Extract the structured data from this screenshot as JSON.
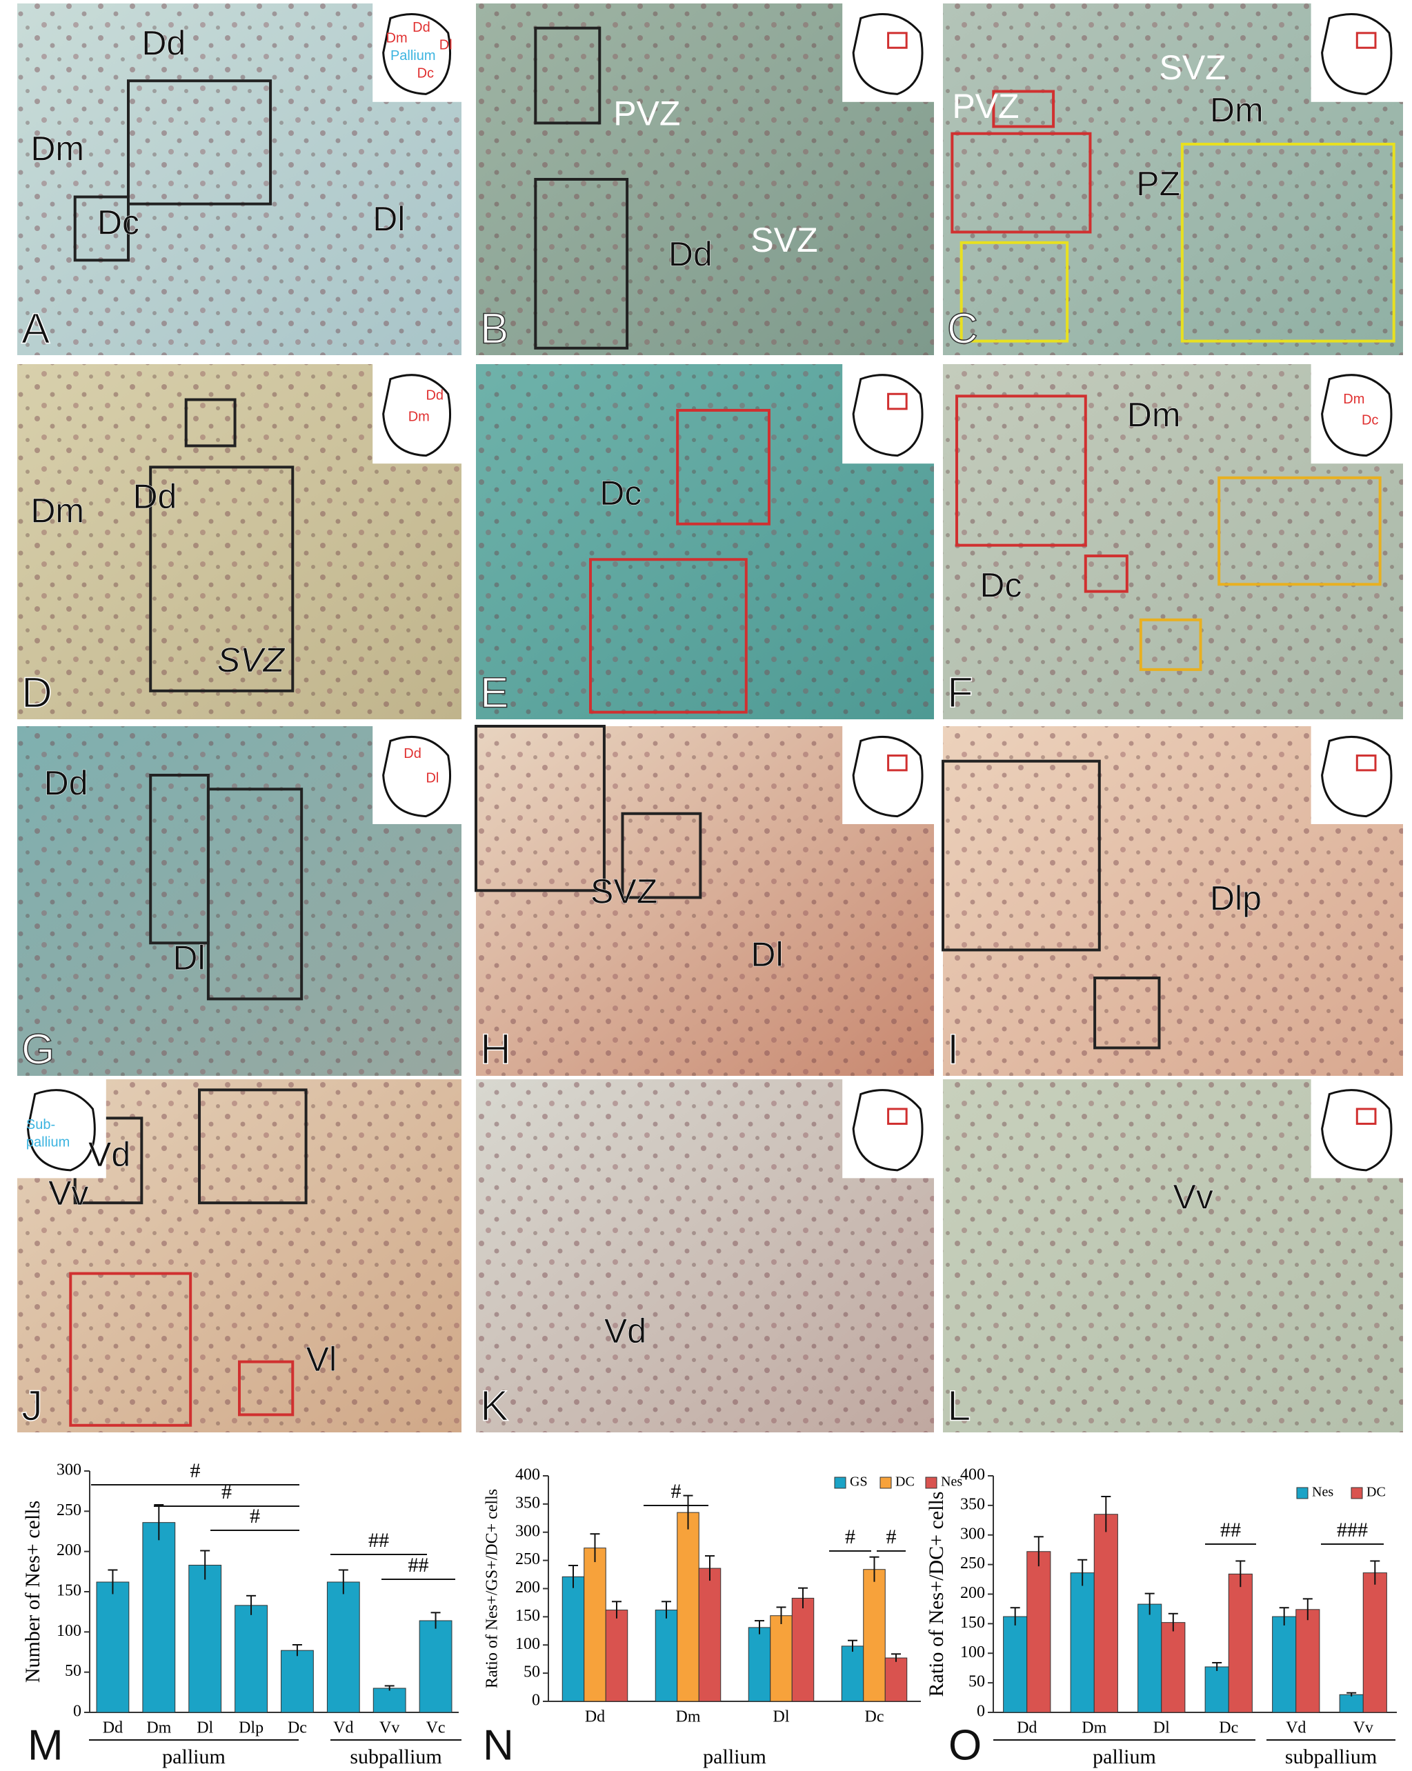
{
  "panels": [
    {
      "letter": "A",
      "labels": [
        "Dd",
        "Dm",
        "Dc",
        "Dl"
      ],
      "schematic": [
        "Dm",
        "Dd",
        "Dl",
        "Pallium",
        "Dc"
      ]
    },
    {
      "letter": "B",
      "labels": [
        "PVZ",
        "SVZ",
        "Dd"
      ],
      "schematic": []
    },
    {
      "letter": "C",
      "labels": [
        "PVZ",
        "SVZ",
        "Dm",
        "PZ"
      ],
      "schematic": []
    },
    {
      "letter": "D",
      "labels": [
        "Dm",
        "Dd",
        "SVZ"
      ],
      "schematic": [
        "Dd",
        "Dm"
      ]
    },
    {
      "letter": "E",
      "labels": [
        "Dc"
      ],
      "schematic": []
    },
    {
      "letter": "F",
      "labels": [
        "Dm",
        "Dc"
      ],
      "schematic": [
        "Dm",
        "Dc"
      ]
    },
    {
      "letter": "G",
      "labels": [
        "Dd",
        "Dl"
      ],
      "schematic": [
        "Dd",
        "Dl"
      ]
    },
    {
      "letter": "H",
      "labels": [
        "SVZ",
        "Dl"
      ],
      "schematic": []
    },
    {
      "letter": "I",
      "labels": [
        "Dlp"
      ],
      "schematic": []
    },
    {
      "letter": "J",
      "labels": [
        "Vd",
        "Vv",
        "Vl"
      ],
      "schematic": [
        "Sub-",
        "pallium"
      ]
    },
    {
      "letter": "K",
      "labels": [
        "Vd"
      ],
      "schematic": []
    },
    {
      "letter": "L",
      "labels": [
        "Vv"
      ],
      "schematic": []
    }
  ],
  "chart_data": [
    {
      "type": "bar",
      "panel": "M",
      "ylabel": "Number of Nes+ cells",
      "categories": [
        "Dd",
        "Dm",
        "Dl",
        "Dlp",
        "Dc",
        "Vd",
        "Vv",
        "Vc"
      ],
      "values": [
        162,
        236,
        183,
        133,
        77,
        162,
        30,
        114
      ],
      "errors": [
        15,
        22,
        18,
        12,
        7,
        15,
        3,
        10
      ],
      "color": "#1ba3c6",
      "ylim": [
        0,
        300
      ],
      "yticks": [
        0,
        50,
        100,
        150,
        200,
        250,
        300
      ],
      "annotations": [
        "#",
        "#",
        "#",
        "##",
        "##"
      ],
      "groups": [
        "pallium",
        "subpallium"
      ]
    },
    {
      "type": "bar",
      "panel": "N",
      "ylabel": "Ratio of Nes+/GS+/DC+ cells",
      "categories": [
        "Dd",
        "Dm",
        "Dl",
        "Dc"
      ],
      "series": [
        {
          "name": "GS",
          "color": "#1ba3c6",
          "values": [
            221,
            162,
            131,
            98
          ],
          "errors": [
            20,
            15,
            12,
            10
          ]
        },
        {
          "name": "DC",
          "color": "#f7a23b",
          "values": [
            272,
            335,
            152,
            234
          ],
          "errors": [
            25,
            30,
            15,
            22
          ]
        },
        {
          "name": "Nes",
          "color": "#d9534f",
          "values": [
            162,
            236,
            183,
            77
          ],
          "errors": [
            15,
            22,
            18,
            7
          ]
        }
      ],
      "ylim": [
        0,
        400
      ],
      "yticks": [
        0,
        50,
        100,
        150,
        200,
        250,
        300,
        350,
        400
      ],
      "xlabel": "pallium",
      "annotations": [
        "#",
        "#",
        "#"
      ],
      "legend": "upper right"
    },
    {
      "type": "bar",
      "panel": "O",
      "ylabel": "Ratio of Nes+/DC+ cells",
      "categories": [
        "Dd",
        "Dm",
        "Dl",
        "Dc",
        "Vd",
        "Vv"
      ],
      "series": [
        {
          "name": "Nes",
          "color": "#1ba3c6",
          "values": [
            162,
            236,
            183,
            77,
            162,
            30
          ],
          "errors": [
            15,
            22,
            18,
            7,
            15,
            3
          ]
        },
        {
          "name": "DC",
          "color": "#d9534f",
          "values": [
            272,
            335,
            152,
            234,
            174,
            236
          ],
          "errors": [
            25,
            30,
            15,
            22,
            18,
            20
          ]
        }
      ],
      "ylim": [
        0,
        400
      ],
      "yticks": [
        0,
        50,
        100,
        150,
        200,
        250,
        300,
        350,
        400
      ],
      "annotations": [
        "##",
        "###"
      ],
      "groups": [
        "pallium",
        "subpallium"
      ],
      "legend": "upper right"
    }
  ]
}
